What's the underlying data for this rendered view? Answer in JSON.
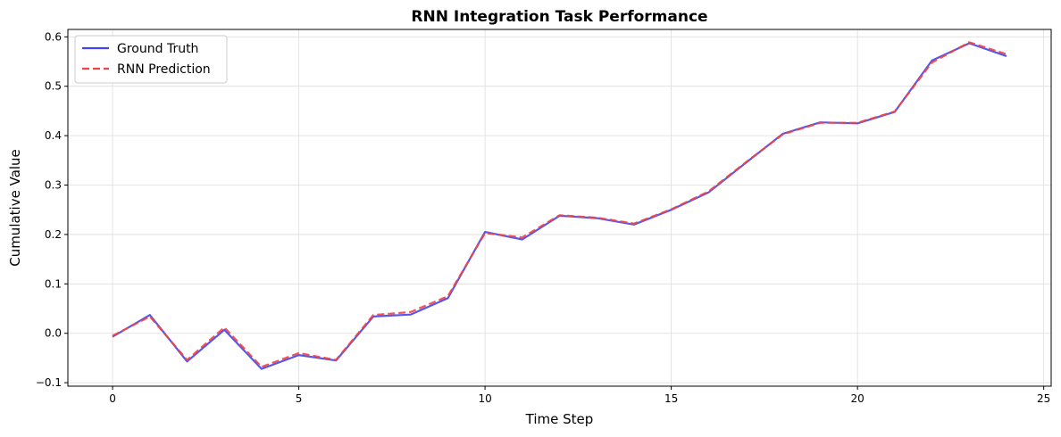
{
  "chart_data": {
    "type": "line",
    "title": "RNN Integration Task Performance",
    "xlabel": "Time Step",
    "ylabel": "Cumulative Value",
    "xlim": [
      -1.2,
      25.2
    ],
    "ylim": [
      -0.107,
      0.615
    ],
    "xticks": [
      0,
      5,
      10,
      15,
      20,
      25
    ],
    "yticks": [
      -0.1,
      0.0,
      0.1,
      0.2,
      0.3,
      0.4,
      0.5,
      0.6
    ],
    "ytick_labels": [
      "−0.1",
      "0.0",
      "0.1",
      "0.2",
      "0.3",
      "0.4",
      "0.5",
      "0.6"
    ],
    "grid": true,
    "legend_position": "upper-left",
    "x": [
      0,
      1,
      2,
      3,
      4,
      5,
      6,
      7,
      8,
      9,
      10,
      11,
      12,
      13,
      14,
      15,
      16,
      17,
      18,
      19,
      20,
      21,
      22,
      23,
      24
    ],
    "series": [
      {
        "name": "Ground Truth",
        "color": "#4444ee",
        "style": "solid",
        "values": [
          -0.007,
          0.037,
          -0.057,
          0.007,
          -0.072,
          -0.044,
          -0.055,
          0.034,
          0.038,
          0.071,
          0.205,
          0.19,
          0.238,
          0.233,
          0.22,
          0.25,
          0.285,
          0.345,
          0.404,
          0.427,
          0.425,
          0.448,
          0.552,
          0.587,
          0.561
        ]
      },
      {
        "name": "RNN Prediction",
        "color": "#ee4444",
        "style": "dashed",
        "values": [
          -0.005,
          0.034,
          -0.054,
          0.012,
          -0.068,
          -0.04,
          -0.054,
          0.037,
          0.043,
          0.075,
          0.203,
          0.194,
          0.239,
          0.234,
          0.222,
          0.251,
          0.287,
          0.346,
          0.403,
          0.426,
          0.426,
          0.449,
          0.548,
          0.589,
          0.565
        ]
      }
    ]
  }
}
